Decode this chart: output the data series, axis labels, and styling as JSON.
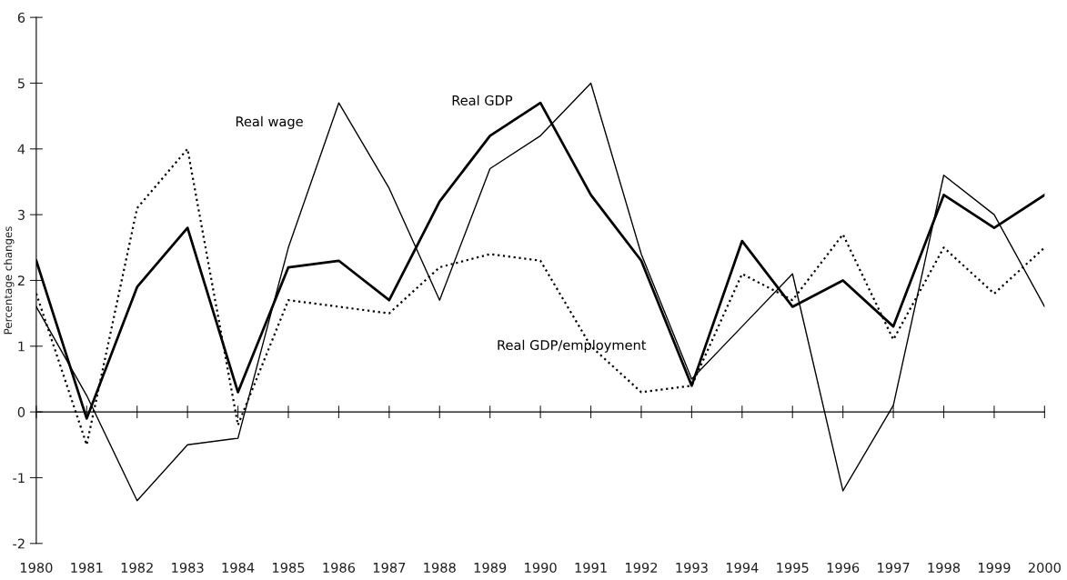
{
  "chart_data": {
    "type": "line",
    "ylabel": "Percentage changes",
    "categories": [
      "1980",
      "1981",
      "1982",
      "1983",
      "1984",
      "1985",
      "1986",
      "1987",
      "1988",
      "1989",
      "1990",
      "1991",
      "1992",
      "1993",
      "1994",
      "1995",
      "1996",
      "1997",
      "1998",
      "1999",
      "2000"
    ],
    "series": [
      {
        "name": "Real GDP",
        "color": "#000000",
        "line_style": "solid",
        "values": [
          2.3,
          -0.1,
          1.9,
          2.8,
          0.3,
          2.2,
          2.3,
          1.7,
          3.2,
          4.2,
          4.7,
          3.3,
          2.3,
          0.4,
          2.6,
          1.6,
          2.0,
          1.3,
          3.3,
          2.8,
          3.3
        ]
      },
      {
        "name": "Real wage",
        "color": "#000000",
        "line_style": "solid",
        "values": [
          1.6,
          0.25,
          -1.35,
          -0.5,
          -0.4,
          2.5,
          4.7,
          3.4,
          1.7,
          3.7,
          4.2,
          5.0,
          2.4,
          0.5,
          1.3,
          2.1,
          -1.2,
          0.1,
          3.6,
          3.0,
          1.6
        ]
      },
      {
        "name": "Real GDP/employment",
        "color": "#000000",
        "line_style": "dotted",
        "values": [
          1.8,
          -0.5,
          3.1,
          4.0,
          -0.2,
          1.7,
          1.6,
          1.5,
          2.2,
          2.4,
          2.3,
          1.0,
          0.3,
          0.4,
          2.1,
          1.7,
          2.7,
          1.1,
          2.5,
          1.8,
          2.5
        ]
      }
    ],
    "ylim": [
      -2,
      6
    ],
    "yticks": [
      -2,
      -1,
      0,
      1,
      2,
      3,
      4,
      5,
      6
    ],
    "legend": false,
    "marker": "none"
  }
}
